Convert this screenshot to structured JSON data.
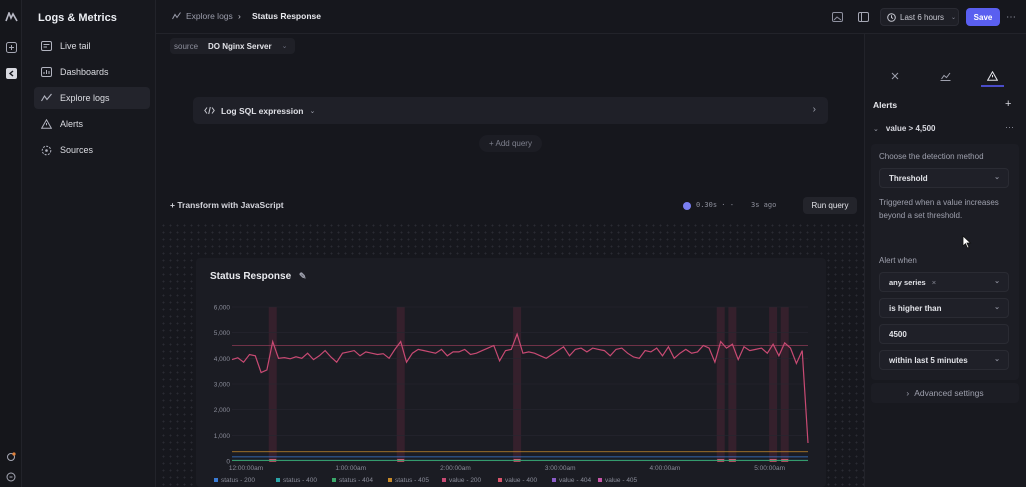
{
  "app": {
    "title": "Logs & Metrics"
  },
  "sidebar": {
    "items": [
      {
        "label": "Live tail",
        "icon": "live-tail-icon"
      },
      {
        "label": "Dashboards",
        "icon": "dashboards-icon"
      },
      {
        "label": "Explore logs",
        "icon": "explore-logs-icon",
        "active": true
      },
      {
        "label": "Alerts",
        "icon": "alerts-icon"
      },
      {
        "label": "Sources",
        "icon": "sources-icon"
      }
    ]
  },
  "header": {
    "breadcrumb": [
      "Explore logs",
      "Status Response"
    ],
    "time_range": "Last 6 hours",
    "save_label": "Save"
  },
  "query": {
    "source_label": "source",
    "source_value": "DO Nginx Server",
    "sql_label": "Log SQL expression",
    "add_query": "+ Add query",
    "transform": "+ Transform with JavaScript",
    "duration": "0.30s · -",
    "ago": "3s ago",
    "run_label": "Run query"
  },
  "chart_data": {
    "type": "line",
    "title": "Status Response",
    "ylim": [
      0,
      6000
    ],
    "yticks": [
      "0",
      "1,000",
      "2,000",
      "3,000",
      "4,000",
      "5,000",
      "6,000"
    ],
    "xticks": [
      "12:00:00am",
      "1:00:00am",
      "2:00:00am",
      "3:00:00am",
      "4:00:00am",
      "5:00:00am"
    ],
    "threshold": 4500,
    "series": [
      {
        "name": "status - 200",
        "color": "#3a7bd5"
      },
      {
        "name": "status - 400",
        "color": "#2aa4a8"
      },
      {
        "name": "status - 404",
        "color": "#3aa86a"
      },
      {
        "name": "status - 405",
        "color": "#c78a2a"
      },
      {
        "name": "value - 200",
        "color": "#c84a73",
        "values": [
          3950,
          4020,
          3850,
          4150,
          4100,
          3450,
          3550,
          4650,
          4000,
          4030,
          3980,
          4060,
          4000,
          4200,
          3950,
          4100,
          4300,
          4050,
          3850,
          4200,
          4250,
          4300,
          4100,
          4250,
          4200,
          4150,
          4180,
          4000,
          4350,
          4650,
          3850,
          4200,
          4350,
          4300,
          4250,
          4200,
          4350,
          4100,
          4250,
          4250,
          4350,
          4150,
          4200,
          4300,
          4400,
          4500,
          3900,
          4300,
          4350,
          4950,
          4200,
          4250,
          4200,
          4100,
          4000,
          4150,
          4300,
          4450,
          4100,
          4350,
          4400,
          4250,
          4400,
          4350,
          4300,
          4100,
          4350,
          4400,
          4200,
          4050,
          4000,
          4300,
          4250,
          4400,
          4100,
          4450,
          4000,
          4200,
          4350,
          4200,
          4250,
          4500,
          4400,
          3850,
          4650,
          4400,
          4550,
          3950,
          4450,
          4300,
          4350,
          4400,
          4200,
          4550,
          4100,
          4600,
          4400,
          3800,
          4300,
          700
        ]
      },
      {
        "name": "value - 400",
        "color": "#d9556b"
      },
      {
        "name": "value - 404",
        "color": "#8a5cc7"
      },
      {
        "name": "value - 405",
        "color": "#c756a8"
      }
    ]
  },
  "right_panel": {
    "section_title": "Alerts",
    "alert_name": "value > 4,500",
    "detection_label": "Choose the detection method",
    "detection_value": "Threshold",
    "detection_help": "Triggered when a value increases beyond a set threshold.",
    "alert_when_label": "Alert when",
    "series_value": "any series",
    "condition_value": "is higher than",
    "threshold_value": "4500",
    "window_value": "within last 5 minutes",
    "advanced": "Advanced settings"
  }
}
